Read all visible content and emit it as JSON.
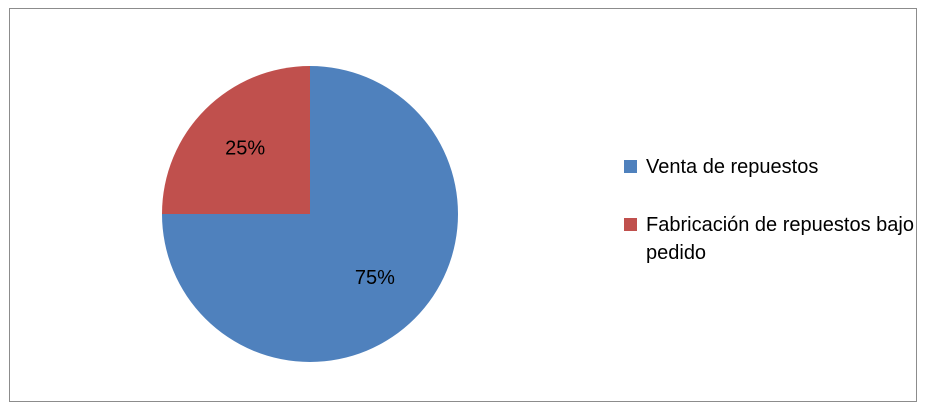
{
  "chart_data": {
    "type": "pie",
    "title": "",
    "categories": [
      "Venta de repuestos",
      "Fabricación de repuestos bajo pedido"
    ],
    "values": [
      75,
      25
    ],
    "value_labels": [
      "75%",
      "25%"
    ],
    "colors": [
      "#4F81BD",
      "#C0504D"
    ],
    "legend_position": "right",
    "start_angle": "12 o'clock, clockwise"
  }
}
